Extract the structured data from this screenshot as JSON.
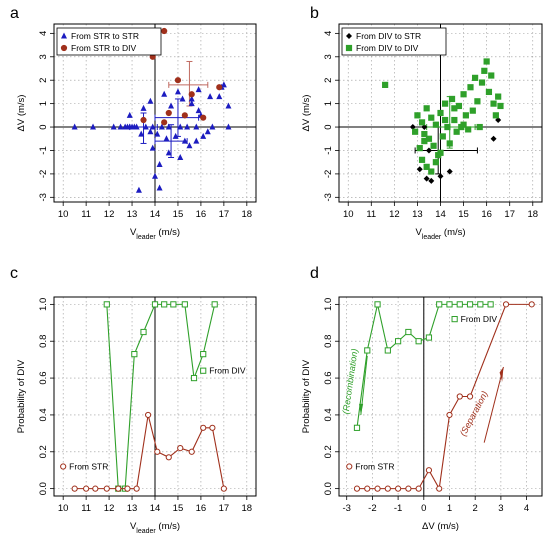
{
  "chart_data": [
    {
      "panel": "a",
      "type": "scatter",
      "xlabel": "V",
      "xlabel_sub": "leader",
      "xlabel_unit": " (m/s)",
      "ylabel": "ΔV (m/s)",
      "xlim": [
        9.6,
        18.4
      ],
      "ylim": [
        -3.2,
        4.4
      ],
      "xticks": [
        10,
        11,
        12,
        13,
        14,
        15,
        16,
        17,
        18
      ],
      "yticks": [
        -3,
        -2,
        -1,
        0,
        1,
        2,
        3,
        4
      ],
      "grid": true,
      "refline_x": 14,
      "refline_y": 0,
      "legend_position": "top-left",
      "series": [
        {
          "name": "From STR to STR",
          "color": "#1c1cc0",
          "marker": "triangle",
          "points": [
            [
              10.5,
              0
            ],
            [
              11.3,
              0
            ],
            [
              12.2,
              0
            ],
            [
              12.5,
              0
            ],
            [
              12.7,
              0
            ],
            [
              12.8,
              0
            ],
            [
              12.9,
              0
            ],
            [
              13.0,
              0
            ],
            [
              13.1,
              0
            ],
            [
              13.2,
              0
            ],
            [
              13.6,
              0
            ],
            [
              13.9,
              0
            ],
            [
              14.3,
              0
            ],
            [
              14.6,
              0
            ],
            [
              15.1,
              0
            ],
            [
              15.4,
              0
            ],
            [
              15.8,
              0
            ],
            [
              16.5,
              0
            ],
            [
              17.2,
              0
            ],
            [
              12.9,
              0.5
            ],
            [
              13.5,
              0.8
            ],
            [
              13.8,
              1.1
            ],
            [
              14.4,
              1.4
            ],
            [
              14.7,
              0.9
            ],
            [
              15.0,
              1.5
            ],
            [
              15.2,
              1.2
            ],
            [
              15.6,
              1.0
            ],
            [
              15.9,
              1.6
            ],
            [
              16.4,
              1.3
            ],
            [
              16.9,
              1.7
            ],
            [
              17.0,
              1.8
            ],
            [
              16.8,
              1.3
            ],
            [
              17.2,
              0.9
            ],
            [
              13.4,
              -0.3
            ],
            [
              13.8,
              -0.2
            ],
            [
              14.1,
              -0.3
            ],
            [
              14.5,
              -0.5
            ],
            [
              14.9,
              -0.4
            ],
            [
              15.3,
              -0.6
            ],
            [
              13.9,
              -0.9
            ],
            [
              14.6,
              -1.1
            ],
            [
              15.1,
              -1.3
            ],
            [
              15.5,
              -0.8
            ],
            [
              15.8,
              -0.6
            ],
            [
              16.1,
              -0.4
            ],
            [
              16.3,
              -0.2
            ],
            [
              14.2,
              -1.6
            ],
            [
              14.0,
              -2.1
            ],
            [
              14.2,
              -2.6
            ],
            [
              13.3,
              -2.7
            ],
            [
              15.6,
              1.2
            ],
            [
              16.0,
              0.5
            ],
            [
              15.9,
              0.7
            ]
          ]
        },
        {
          "name": "From STR to DIV",
          "color": "#a0301c",
          "marker": "circle",
          "points": [
            [
              13.9,
              3.0
            ],
            [
              14.4,
              4.1
            ],
            [
              16.8,
              1.7
            ],
            [
              15.0,
              2.0
            ],
            [
              15.6,
              1.4
            ],
            [
              13.5,
              0.3
            ],
            [
              14.6,
              0.6
            ],
            [
              15.3,
              0.5
            ],
            [
              16.1,
              0.4
            ],
            [
              14.4,
              0.2
            ]
          ]
        }
      ],
      "error_crosses": [
        {
          "color": "#1c1cc0",
          "cx": 13.5,
          "cy": 0,
          "xlo": 12.9,
          "xhi": 14.1,
          "ylo": -0.7,
          "yhi": 0.6
        },
        {
          "color": "#1c1cc0",
          "cx": 15.0,
          "cy": 0.4,
          "xlo": 14.0,
          "xhi": 15.9,
          "ylo": -0.4,
          "yhi": 1.2
        },
        {
          "color": "#1c1cc0",
          "cx": 14.7,
          "cy": -0.6,
          "xlo": 14.0,
          "xhi": 15.4,
          "ylo": -1.3,
          "yhi": 0.1
        },
        {
          "color": "#c06a60",
          "cx": 15.5,
          "cy": 1.8,
          "xlo": 14.6,
          "xhi": 16.3,
          "ylo": 0.9,
          "yhi": 2.8
        }
      ]
    },
    {
      "panel": "b",
      "type": "scatter",
      "xlabel": "V",
      "xlabel_sub": "leader",
      "xlabel_unit": " (m/s)",
      "ylabel": "ΔV (m/s)",
      "xlim": [
        9.6,
        18.4
      ],
      "ylim": [
        -3.2,
        4.4
      ],
      "xticks": [
        10,
        11,
        12,
        13,
        14,
        15,
        16,
        17,
        18
      ],
      "yticks": [
        -3,
        -2,
        -1,
        0,
        1,
        2,
        3,
        4
      ],
      "grid": true,
      "refline_x": 14,
      "refline_y": 0,
      "legend_position": "top-left",
      "series": [
        {
          "name": "From DIV to STR",
          "color": "#000000",
          "marker": "diamond",
          "points": [
            [
              12.8,
              0
            ],
            [
              13.3,
              0
            ],
            [
              13.1,
              -1.8
            ],
            [
              13.4,
              -2.2
            ],
            [
              13.6,
              -2.3
            ],
            [
              14.0,
              -2.1
            ],
            [
              14.4,
              -1.9
            ],
            [
              16.3,
              -0.5
            ],
            [
              16.5,
              0.3
            ],
            [
              13.5,
              -1.0
            ]
          ]
        },
        {
          "name": "From DIV to DIV",
          "color": "#2fa02a",
          "marker": "square",
          "points": [
            [
              11.6,
              1.8
            ],
            [
              13.0,
              0.5
            ],
            [
              13.2,
              0.2
            ],
            [
              13.3,
              -0.3
            ],
            [
              13.4,
              0.8
            ],
            [
              13.5,
              -0.5
            ],
            [
              13.6,
              0.4
            ],
            [
              13.7,
              -0.8
            ],
            [
              13.8,
              0.1
            ],
            [
              13.9,
              -1.2
            ],
            [
              14.0,
              0.6
            ],
            [
              14.1,
              -0.4
            ],
            [
              14.2,
              1.0
            ],
            [
              14.3,
              0.0
            ],
            [
              14.4,
              -0.7
            ],
            [
              14.5,
              1.2
            ],
            [
              14.6,
              0.3
            ],
            [
              14.7,
              -0.2
            ],
            [
              14.8,
              0.9
            ],
            [
              14.9,
              0.0
            ],
            [
              15.0,
              1.4
            ],
            [
              15.1,
              0.5
            ],
            [
              15.2,
              -0.1
            ],
            [
              15.3,
              1.7
            ],
            [
              15.4,
              0.7
            ],
            [
              15.5,
              2.1
            ],
            [
              15.6,
              1.1
            ],
            [
              15.7,
              0.0
            ],
            [
              15.8,
              1.9
            ],
            [
              15.9,
              2.4
            ],
            [
              16.0,
              2.8
            ],
            [
              16.1,
              1.5
            ],
            [
              16.2,
              2.2
            ],
            [
              16.3,
              1.0
            ],
            [
              16.4,
              0.5
            ],
            [
              16.5,
              1.3
            ],
            [
              16.6,
              0.9
            ],
            [
              13.2,
              -1.4
            ],
            [
              13.4,
              -1.7
            ],
            [
              13.6,
              -1.9
            ],
            [
              13.8,
              -1.5
            ],
            [
              14.0,
              -1.1
            ],
            [
              13.1,
              -0.9
            ],
            [
              13.3,
              -0.6
            ],
            [
              12.9,
              -0.2
            ],
            [
              14.2,
              0.3
            ],
            [
              14.6,
              0.8
            ],
            [
              15.0,
              0.1
            ]
          ]
        }
      ],
      "error_crosses": [
        {
          "color": "#000000",
          "cx": 13.9,
          "cy": -1.0,
          "xlo": 12.9,
          "xhi": 15.6,
          "ylo": -2.0,
          "yhi": 0.0
        },
        {
          "color": "#2fa02a",
          "cx": 14.4,
          "cy": 0.0,
          "xlo": 13.4,
          "xhi": 15.5,
          "ylo": -0.9,
          "yhi": 1.3
        }
      ]
    },
    {
      "panel": "c",
      "type": "line",
      "xlabel": "V",
      "xlabel_sub": "leader",
      "xlabel_unit": " (m/s)",
      "ylabel": "Probability of DIV",
      "xlim": [
        9.6,
        18.4
      ],
      "ylim": [
        -0.04,
        1.04
      ],
      "xticks": [
        10,
        11,
        12,
        13,
        14,
        15,
        16,
        17,
        18
      ],
      "yticks": [
        0.0,
        0.2,
        0.4,
        0.6,
        0.8,
        1.0
      ],
      "grid": true,
      "refline_x": 14,
      "series": [
        {
          "name": "From DIV",
          "color": "#2fa02a",
          "marker": "square",
          "x": [
            11.9,
            12.4,
            12.7,
            13.1,
            13.5,
            14.0,
            14.4,
            14.8,
            15.3,
            15.7,
            16.1,
            16.6
          ],
          "y": [
            1.0,
            0.0,
            0.0,
            0.73,
            0.85,
            1.0,
            1.0,
            1.0,
            1.0,
            0.6,
            0.73,
            1.0
          ]
        },
        {
          "name": "From STR",
          "color": "#a0301c",
          "marker": "circle",
          "x": [
            10.5,
            11.0,
            11.4,
            11.9,
            12.4,
            12.8,
            13.2,
            13.7,
            14.1,
            14.6,
            15.1,
            15.6,
            16.1,
            16.5,
            17.0
          ],
          "y": [
            0.0,
            0.0,
            0.0,
            0.0,
            0.0,
            0.0,
            0.0,
            0.4,
            0.2,
            0.17,
            0.22,
            0.2,
            0.33,
            0.33,
            0.0
          ]
        }
      ]
    },
    {
      "panel": "d",
      "type": "line",
      "xlabel": "ΔV (m/s)",
      "ylabel": "Probability of DIV",
      "xlim": [
        -3.3,
        4.6
      ],
      "ylim": [
        -0.04,
        1.04
      ],
      "xticks": [
        -3,
        -2,
        -1,
        0,
        1,
        2,
        3,
        4
      ],
      "yticks": [
        0.0,
        0.2,
        0.4,
        0.6,
        0.8,
        1.0
      ],
      "grid": true,
      "refline_x": 0,
      "annotations": [
        {
          "text": "(Recombination)",
          "color": "#2fa02a"
        },
        {
          "text": "(Separation)",
          "color": "#a0301c"
        }
      ],
      "series": [
        {
          "name": "From DIV",
          "color": "#2fa02a",
          "marker": "square",
          "x": [
            -2.6,
            -2.2,
            -1.8,
            -1.4,
            -1.0,
            -0.6,
            -0.2,
            0.2,
            0.6,
            1.0,
            1.4,
            1.8,
            2.2,
            2.6
          ],
          "y": [
            0.33,
            0.75,
            1.0,
            0.75,
            0.8,
            0.85,
            0.8,
            0.82,
            1.0,
            1.0,
            1.0,
            1.0,
            1.0,
            1.0
          ]
        },
        {
          "name": "From STR",
          "color": "#a0301c",
          "marker": "circle",
          "x": [
            -2.6,
            -2.2,
            -1.8,
            -1.4,
            -1.0,
            -0.6,
            -0.2,
            0.2,
            0.6,
            1.0,
            1.4,
            1.8,
            3.2,
            4.2
          ],
          "y": [
            0.0,
            0.0,
            0.0,
            0.0,
            0.0,
            0.0,
            0.0,
            0.1,
            0.0,
            0.4,
            0.5,
            0.5,
            1.0,
            1.0
          ]
        }
      ]
    }
  ]
}
